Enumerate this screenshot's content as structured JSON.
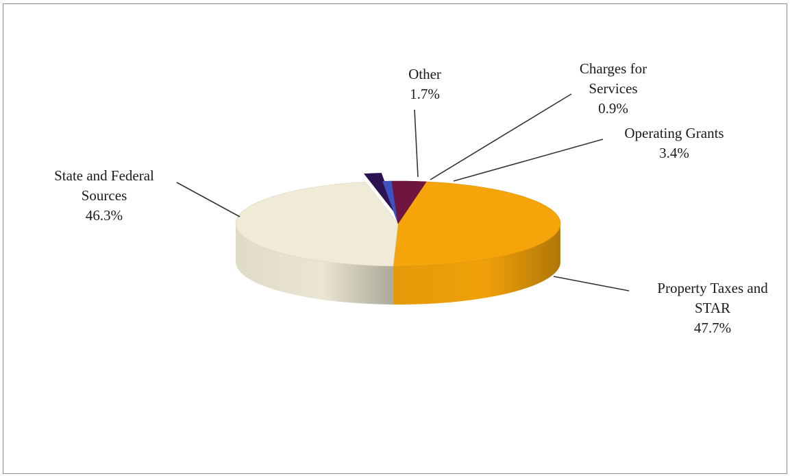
{
  "chart_data": {
    "type": "pie",
    "style": "3d-exploded",
    "title": "",
    "legend": "none",
    "slices": [
      {
        "label_lines": [
          "Property Taxes and",
          "STAR"
        ],
        "percent_text": "47.7%",
        "value": 47.7,
        "color": "#f5a40a"
      },
      {
        "label_lines": [
          "State and Federal",
          "Sources"
        ],
        "percent_text": "46.3%",
        "value": 46.3,
        "color": "#efebd6"
      },
      {
        "label_lines": [
          "Other"
        ],
        "percent_text": "1.7%",
        "value": 1.7,
        "color": "#2c1250"
      },
      {
        "label_lines": [
          "Charges for",
          "Services"
        ],
        "percent_text": "0.9%",
        "value": 0.9,
        "color": "#3d52c0"
      },
      {
        "label_lines": [
          "Operating Grants"
        ],
        "percent_text": "3.4%",
        "value": 3.4,
        "color": "#6e1640"
      }
    ]
  }
}
